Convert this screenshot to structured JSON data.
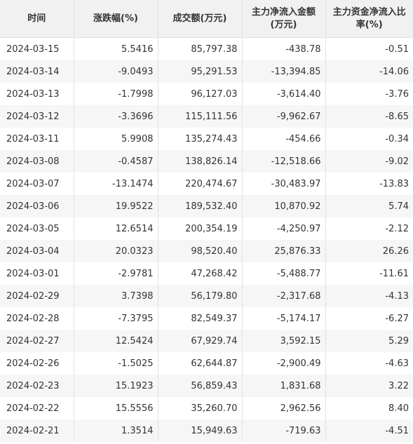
{
  "headers": [
    "时间",
    "涨跌幅(%)",
    "成交额(万元)",
    "主力净流入金额(万元)",
    "主力资金净流入比率(%)"
  ],
  "rows": [
    [
      "2024-03-15",
      "5.5416",
      "85,797.38",
      "-438.78",
      "-0.51"
    ],
    [
      "2024-03-14",
      "-9.0493",
      "95,291.53",
      "-13,394.85",
      "-14.06"
    ],
    [
      "2024-03-13",
      "-1.7998",
      "96,127.03",
      "-3,614.40",
      "-3.76"
    ],
    [
      "2024-03-12",
      "-3.3696",
      "115,111.56",
      "-9,962.67",
      "-8.65"
    ],
    [
      "2024-03-11",
      "5.9908",
      "135,274.43",
      "-454.66",
      "-0.34"
    ],
    [
      "2024-03-08",
      "-0.4587",
      "138,826.14",
      "-12,518.66",
      "-9.02"
    ],
    [
      "2024-03-07",
      "-13.1474",
      "220,474.67",
      "-30,483.97",
      "-13.83"
    ],
    [
      "2024-03-06",
      "19.9522",
      "189,532.40",
      "10,870.92",
      "5.74"
    ],
    [
      "2024-03-05",
      "12.6514",
      "200,354.19",
      "-4,250.97",
      "-2.12"
    ],
    [
      "2024-03-04",
      "20.0323",
      "98,520.40",
      "25,876.33",
      "26.26"
    ],
    [
      "2024-03-01",
      "-2.9781",
      "47,268.42",
      "-5,488.77",
      "-11.61"
    ],
    [
      "2024-02-29",
      "3.7398",
      "56,179.80",
      "-2,317.68",
      "-4.13"
    ],
    [
      "2024-02-28",
      "-7.3795",
      "82,549.37",
      "-5,174.17",
      "-6.27"
    ],
    [
      "2024-02-27",
      "12.5424",
      "67,929.74",
      "3,592.15",
      "5.29"
    ],
    [
      "2024-02-26",
      "-1.5025",
      "62,644.87",
      "-2,900.49",
      "-4.63"
    ],
    [
      "2024-02-23",
      "15.1923",
      "56,859.43",
      "1,831.68",
      "3.22"
    ],
    [
      "2024-02-22",
      "15.5556",
      "35,260.70",
      "2,962.56",
      "8.40"
    ],
    [
      "2024-02-21",
      "1.3514",
      "15,949.63",
      "-719.63",
      "-4.51"
    ]
  ]
}
